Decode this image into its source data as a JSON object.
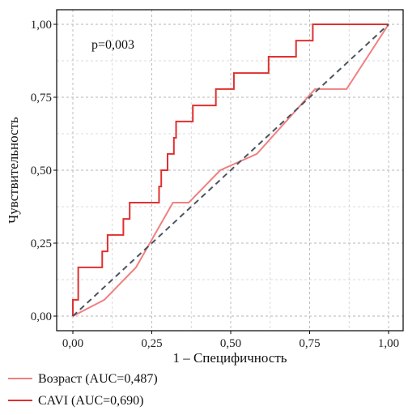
{
  "chart_data": {
    "type": "line",
    "xlabel": "1 – Специфичность",
    "ylabel": "Чувствительность",
    "xlim": [
      0,
      1
    ],
    "ylim": [
      0,
      1
    ],
    "x_ticks": [
      0,
      0.25,
      0.5,
      0.75,
      1
    ],
    "y_ticks": [
      0,
      0.25,
      0.5,
      0.75,
      1
    ],
    "x_tick_labels": [
      "0,00",
      "0,25",
      "0,50",
      "0,75",
      "1,00"
    ],
    "y_tick_labels": [
      "0,00",
      "0,25",
      "0,50",
      "0,75",
      "1,00"
    ],
    "grid": true,
    "legend_position": "bottom-left",
    "annotation": "p=0,003",
    "series": [
      {
        "name": "Возраст (AUC=0,487)",
        "color": "#f08080",
        "points": [
          [
            0,
            0
          ],
          [
            0.1,
            0.056
          ],
          [
            0.2,
            0.167
          ],
          [
            0.317,
            0.389
          ],
          [
            0.367,
            0.389
          ],
          [
            0.467,
            0.5
          ],
          [
            0.583,
            0.556
          ],
          [
            0.767,
            0.778
          ],
          [
            0.867,
            0.778
          ],
          [
            1,
            1
          ]
        ]
      },
      {
        "name": "CAVI (AUC=0,690)",
        "color": "#e03030",
        "points": [
          [
            0,
            0
          ],
          [
            0,
            0.056
          ],
          [
            0.017,
            0.056
          ],
          [
            0.017,
            0.167
          ],
          [
            0.093,
            0.167
          ],
          [
            0.093,
            0.222
          ],
          [
            0.11,
            0.222
          ],
          [
            0.11,
            0.278
          ],
          [
            0.16,
            0.278
          ],
          [
            0.16,
            0.333
          ],
          [
            0.18,
            0.333
          ],
          [
            0.18,
            0.389
          ],
          [
            0.273,
            0.389
          ],
          [
            0.273,
            0.444
          ],
          [
            0.28,
            0.444
          ],
          [
            0.28,
            0.5
          ],
          [
            0.3,
            0.5
          ],
          [
            0.3,
            0.556
          ],
          [
            0.32,
            0.556
          ],
          [
            0.32,
            0.611
          ],
          [
            0.327,
            0.611
          ],
          [
            0.327,
            0.667
          ],
          [
            0.38,
            0.667
          ],
          [
            0.38,
            0.722
          ],
          [
            0.453,
            0.722
          ],
          [
            0.453,
            0.778
          ],
          [
            0.51,
            0.778
          ],
          [
            0.51,
            0.833
          ],
          [
            0.62,
            0.833
          ],
          [
            0.62,
            0.889
          ],
          [
            0.707,
            0.889
          ],
          [
            0.707,
            0.944
          ],
          [
            0.76,
            0.944
          ],
          [
            0.76,
            1
          ],
          [
            1,
            1
          ]
        ]
      }
    ],
    "reference_line": {
      "points": [
        [
          0,
          0
        ],
        [
          1,
          1
        ]
      ],
      "color": "#4a5560",
      "style": "dashed"
    }
  }
}
